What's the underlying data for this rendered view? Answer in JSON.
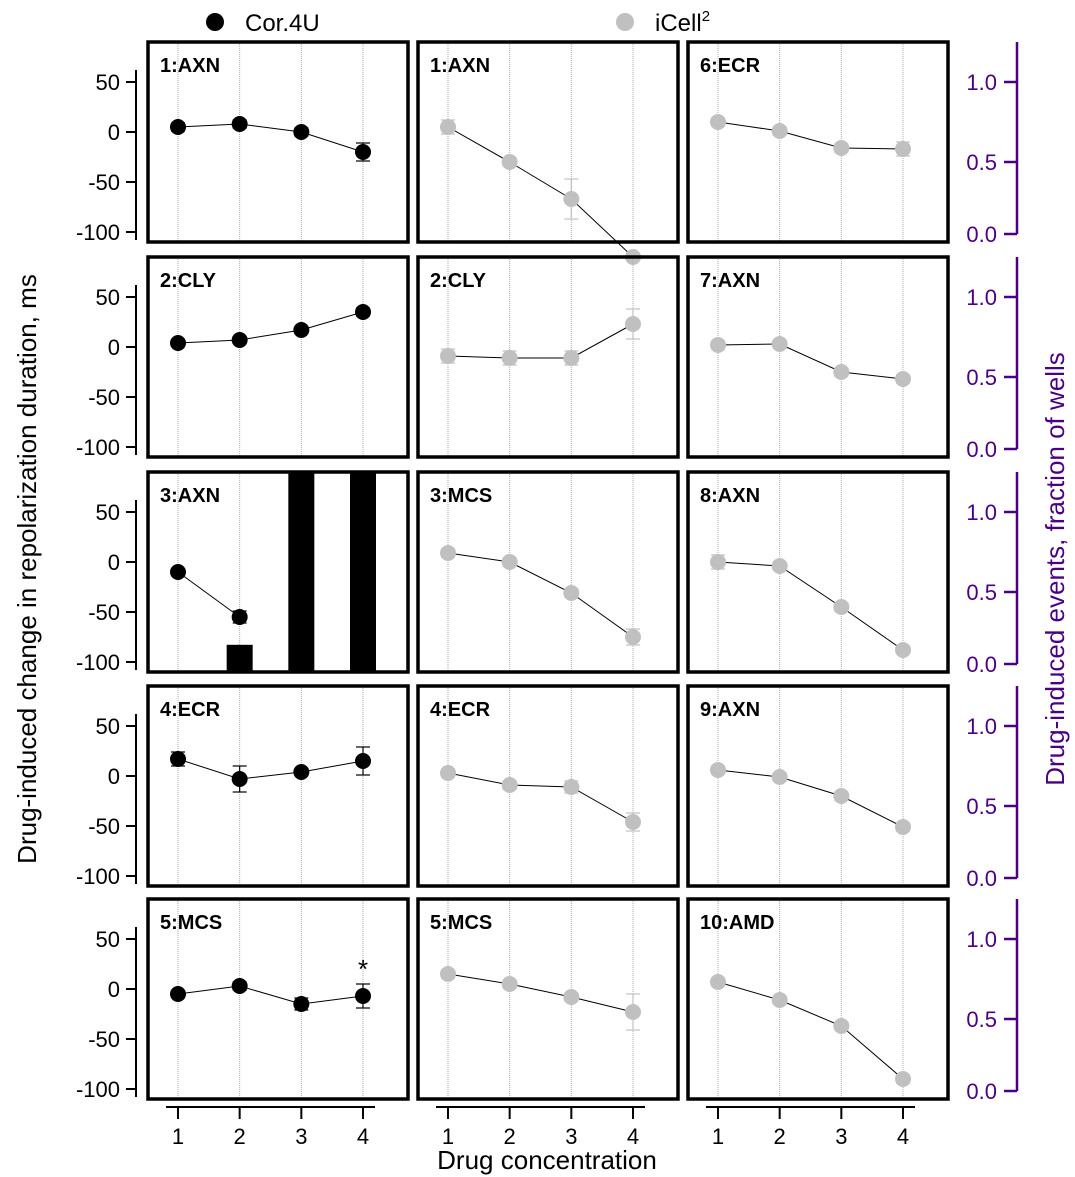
{
  "legend": {
    "series1": {
      "label": "Cor.4U",
      "color": "#000000"
    },
    "series2": {
      "label": "iCell",
      "sup": "2",
      "color": "#c0c0c0"
    }
  },
  "axis_color_right": "#4b0082",
  "chart_data": {
    "type": "scatter",
    "xlabel": "Drug concentration",
    "ylabel_left": "Drug-induced change in repolarization duration, ms",
    "ylabel_right": "Drug-induced events, fraction of wells",
    "x_ticks": [
      1,
      2,
      3,
      4
    ],
    "y_left_ticks": [
      "50",
      "0",
      "-50",
      "-100"
    ],
    "y_left_values": [
      50,
      0,
      -50,
      -100
    ],
    "y_right_ticks": [
      "1.0",
      "0.5",
      "0.0"
    ],
    "y_right_values": [
      1.0,
      0.5,
      0.0
    ],
    "ylim_left": [
      -110,
      90
    ],
    "ylim_right": [
      0,
      1.25
    ],
    "panels": [
      {
        "row": 0,
        "col": 0,
        "label": "1:AXN",
        "series": "Cor.4U",
        "y": [
          5,
          8,
          0,
          -20
        ],
        "err": [
          4,
          4,
          4,
          9
        ]
      },
      {
        "row": 0,
        "col": 1,
        "label": "1:AXN",
        "series": "iCell2",
        "y": [
          5,
          -30,
          -67,
          -125
        ],
        "err": [
          7,
          4,
          20,
          0
        ]
      },
      {
        "row": 0,
        "col": 2,
        "label": "6:ECR",
        "series": "iCell2",
        "y": [
          10,
          1,
          -16,
          -17
        ],
        "err": [
          4,
          4,
          4,
          7
        ]
      },
      {
        "row": 1,
        "col": 0,
        "label": "2:CLY",
        "series": "Cor.4U",
        "y": [
          4,
          7,
          17,
          35
        ],
        "err": [
          3,
          3,
          3,
          4
        ]
      },
      {
        "row": 1,
        "col": 1,
        "label": "2:CLY",
        "series": "iCell2",
        "y": [
          -9,
          -11,
          -11,
          23
        ],
        "err": [
          7,
          7,
          7,
          15
        ]
      },
      {
        "row": 1,
        "col": 2,
        "label": "7:AXN",
        "series": "iCell2",
        "y": [
          2,
          3,
          -25,
          -32
        ],
        "err": [
          4,
          4,
          4,
          4
        ]
      },
      {
        "row": 2,
        "col": 0,
        "label": "3:AXN",
        "series": "Cor.4U",
        "y": [
          -10,
          -55,
          null,
          null
        ],
        "err": [
          3,
          6,
          0,
          0
        ],
        "bars": [
          0,
          0.17,
          1.25,
          1.25
        ],
        "bar_labels": []
      },
      {
        "row": 2,
        "col": 1,
        "label": "3:MCS",
        "series": "iCell2",
        "y": [
          9,
          0,
          -31,
          -75
        ],
        "err": [
          4,
          4,
          4,
          8
        ]
      },
      {
        "row": 2,
        "col": 2,
        "label": "8:AXN",
        "series": "iCell2",
        "y": [
          0,
          -4,
          -45,
          -88
        ],
        "err": [
          7,
          4,
          4,
          4
        ]
      },
      {
        "row": 3,
        "col": 0,
        "label": "4:ECR",
        "series": "Cor.4U",
        "y": [
          17,
          -3,
          4,
          15
        ],
        "err": [
          7,
          13,
          3,
          14
        ]
      },
      {
        "row": 3,
        "col": 1,
        "label": "4:ECR",
        "series": "iCell2",
        "y": [
          3,
          -9,
          -11,
          -46
        ],
        "err": [
          4,
          4,
          6,
          9
        ]
      },
      {
        "row": 3,
        "col": 2,
        "label": "9:AXN",
        "series": "iCell2",
        "y": [
          6,
          -1,
          -20,
          -51
        ],
        "err": [
          4,
          4,
          4,
          4
        ]
      },
      {
        "row": 4,
        "col": 0,
        "label": "5:MCS",
        "series": "Cor.4U",
        "y": [
          -5,
          3,
          -15,
          -7
        ],
        "err": [
          3,
          4,
          6,
          12
        ],
        "star": "*",
        "star_index": 3
      },
      {
        "row": 4,
        "col": 1,
        "label": "5:MCS",
        "series": "iCell2",
        "y": [
          15,
          5,
          -8,
          -23
        ],
        "err": [
          4,
          4,
          4,
          18
        ]
      },
      {
        "row": 4,
        "col": 2,
        "label": "10:AMD",
        "series": "iCell2",
        "y": [
          7,
          -11,
          -37,
          -90
        ],
        "err": [
          4,
          4,
          4,
          4
        ]
      }
    ]
  }
}
